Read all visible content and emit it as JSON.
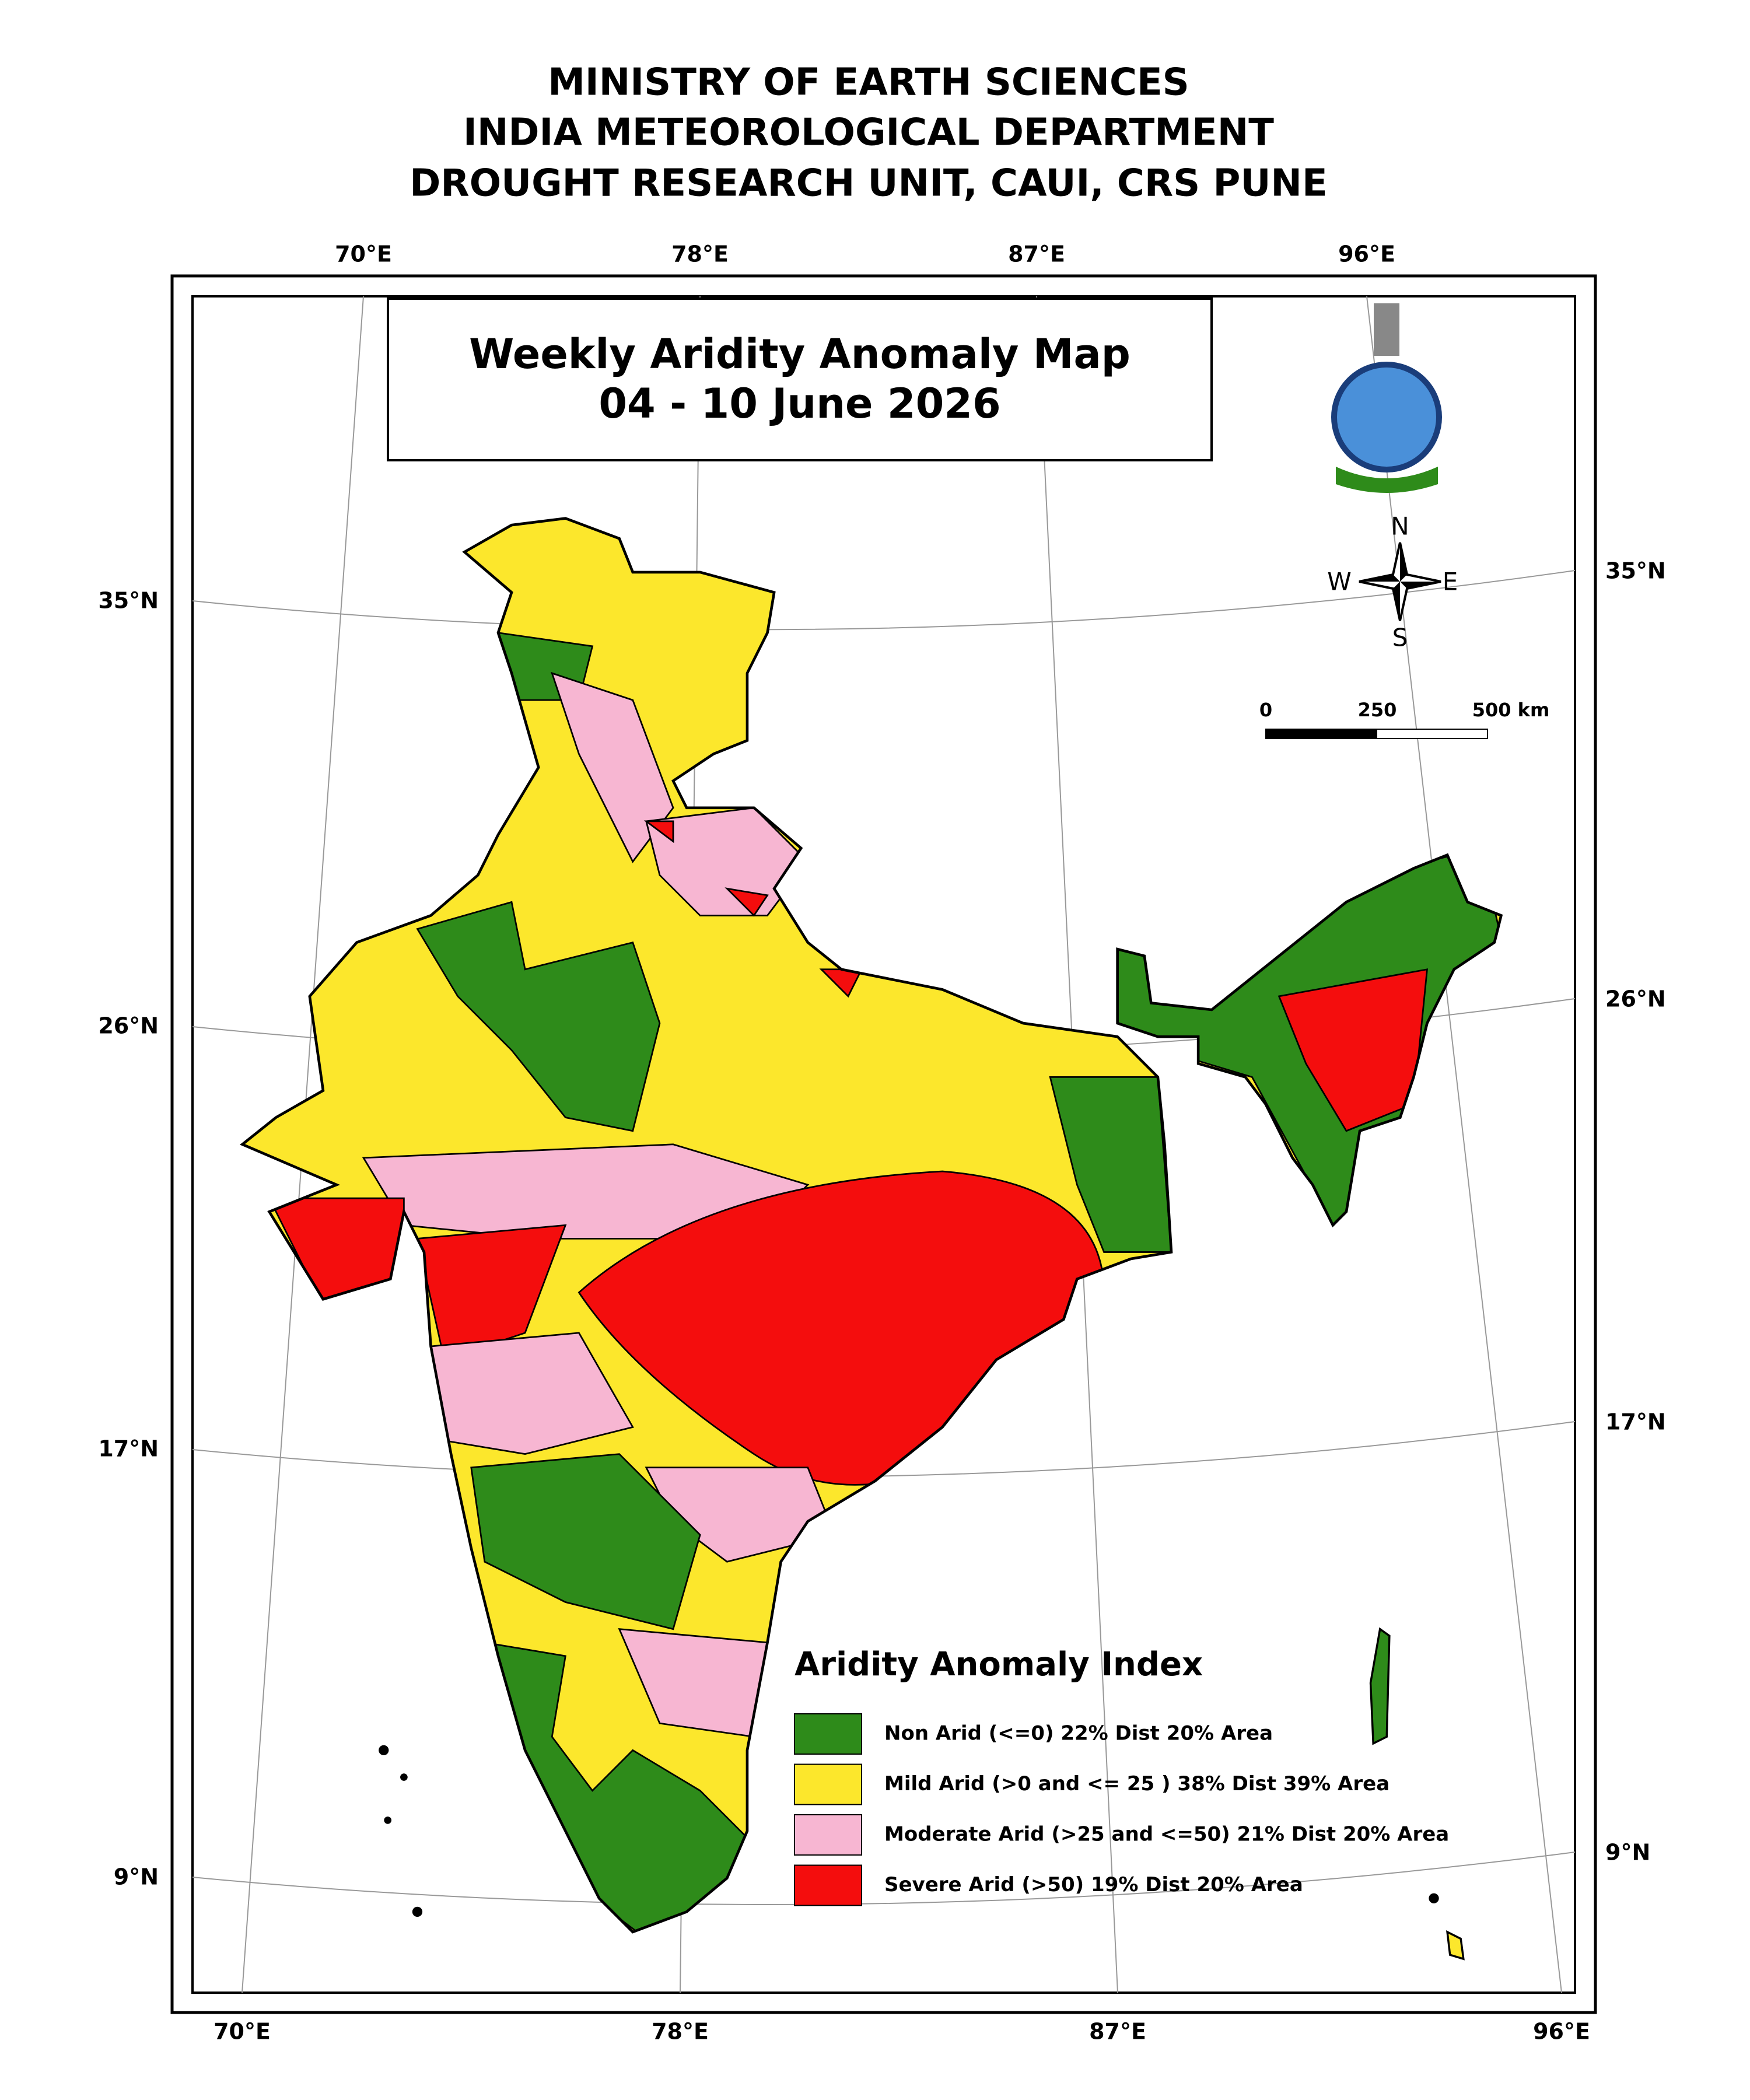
{
  "header": {
    "lines": [
      "MINISTRY OF EARTH SCIENCES",
      "INDIA METEOROLOGICAL DEPARTMENT",
      "DROUGHT RESEARCH UNIT, CAUI, CRS PUNE"
    ]
  },
  "map": {
    "title": "Weekly Aridity Anomaly Map",
    "subtitle": "04 - 10 June 2026",
    "top_labels": [
      "70°E",
      "78°E",
      "87°E",
      "96°E"
    ],
    "bottom_labels": [
      "70°E",
      "78°E",
      "87°E",
      "96°E"
    ],
    "left_labels": [
      "35°N",
      "26°N",
      "17°N",
      "9°N"
    ],
    "right_labels": [
      "35°N",
      "26°N",
      "17°N",
      "9°N"
    ],
    "compass": {
      "north": "N",
      "south": "S",
      "west": "W",
      "east": "E"
    },
    "scale_bar": {
      "labels": [
        "0",
        "250",
        "500 km"
      ]
    },
    "legend": {
      "title": "Aridity Anomaly Index",
      "items": [
        {
          "label": "Non Arid (<=0) 22% Dist 20% Area",
          "color": "#2e8b1a"
        },
        {
          "label": "Mild Arid (>0 and <= 25 ) 38% Dist  39% Area",
          "color": "#fce72c"
        },
        {
          "label": "Moderate Arid (>25 and <=50) 21% Dist 20% Area",
          "color": "#f7b6d2"
        },
        {
          "label": "Severe Arid (>50) 19% Dist  20% Area",
          "color": "#f40d0d"
        }
      ]
    }
  }
}
